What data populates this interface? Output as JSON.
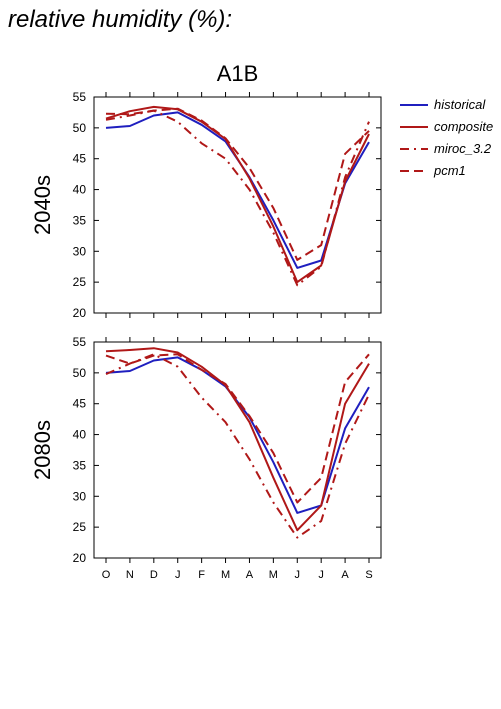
{
  "heading": "relative humidity (%):",
  "chart_data": {
    "type": "line",
    "title": "A1B",
    "categories": [
      "O",
      "N",
      "D",
      "J",
      "F",
      "M",
      "A",
      "M",
      "J",
      "J",
      "A",
      "S"
    ],
    "ylim": [
      20,
      55
    ],
    "yticks": [
      20,
      25,
      30,
      35,
      40,
      45,
      50,
      55
    ],
    "legend_position": "top-right",
    "legend": [
      {
        "name": "historical",
        "color": "#1f1fbf",
        "dash": "solid"
      },
      {
        "name": "composite",
        "color": "#b01818",
        "dash": "solid"
      },
      {
        "name": "miroc_3.2",
        "color": "#b01818",
        "dash": "dashdot"
      },
      {
        "name": "pcm1",
        "color": "#b01818",
        "dash": "dash"
      }
    ],
    "panels": [
      {
        "label": "2040s",
        "series": [
          {
            "name": "historical",
            "values": [
              50.0,
              50.3,
              52.0,
              52.5,
              50.5,
              47.8,
              42.0,
              35.0,
              27.3,
              28.5,
              41.0,
              47.7
            ]
          },
          {
            "name": "composite",
            "values": [
              51.5,
              52.7,
              53.4,
              53.0,
              51.0,
              48.2,
              41.8,
              34.0,
              25.0,
              27.7,
              41.3,
              49.0
            ]
          },
          {
            "name": "miroc_3.2",
            "values": [
              51.3,
              52.0,
              52.8,
              51.0,
              47.5,
              45.0,
              40.0,
              33.0,
              24.5,
              27.5,
              42.0,
              51.0
            ]
          },
          {
            "name": "pcm1",
            "values": [
              52.3,
              52.2,
              52.8,
              53.1,
              51.2,
              48.3,
              43.5,
              37.0,
              28.6,
              31.0,
              45.8,
              49.5
            ]
          }
        ]
      },
      {
        "label": "2080s",
        "series": [
          {
            "name": "historical",
            "values": [
              50.0,
              50.3,
              52.0,
              52.5,
              50.5,
              47.8,
              42.8,
              35.5,
              27.3,
              28.5,
              41.0,
              47.7
            ]
          },
          {
            "name": "composite",
            "values": [
              53.5,
              53.7,
              54.0,
              53.3,
              51.0,
              48.0,
              42.0,
              33.0,
              24.5,
              28.5,
              45.0,
              51.5
            ]
          },
          {
            "name": "miroc_3.2",
            "values": [
              49.8,
              51.5,
              53.0,
              51.0,
              46.0,
              42.0,
              36.0,
              29.0,
              23.3,
              26.0,
              38.5,
              46.5
            ]
          },
          {
            "name": "pcm1",
            "values": [
              52.8,
              51.5,
              52.8,
              53.0,
              50.5,
              48.2,
              43.0,
              37.0,
              29.0,
              33.0,
              48.5,
              53.0
            ]
          }
        ]
      }
    ]
  }
}
